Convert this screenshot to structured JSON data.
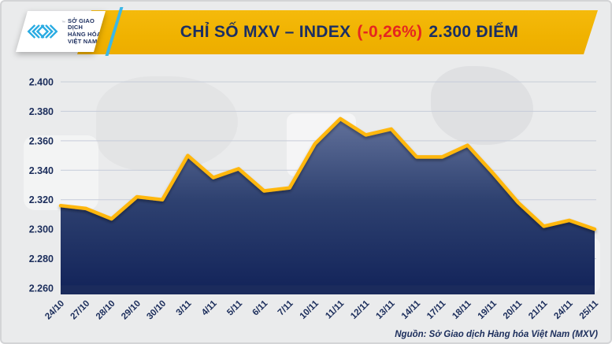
{
  "header": {
    "logo": {
      "line1": "SỞ GIAO DỊCH",
      "line2": "HÀNG HÓA",
      "line3": "VIỆT NAM",
      "trademark": "™"
    },
    "title_main": "CHỈ SỐ MXV – INDEX",
    "title_change": "(-0,26%)",
    "title_value": "2.300 ĐIỂM"
  },
  "footer": {
    "source": "Nguồn: Sở Giao dịch Hàng hóa Việt Nam (MXV)"
  },
  "colors": {
    "banner_yellow": "#F0B200",
    "title_navy": "#1B2F63",
    "title_red": "#E52620",
    "line_yellow": "#FFB70B",
    "axis_navy": "#1B2D5B",
    "gridline": "#C6CCD9",
    "baseline_bar": "#1B2B5C",
    "background": "#EAEBEC",
    "logo_cyan": "#29ABE2"
  },
  "chart_data": {
    "type": "area",
    "title": "CHỈ SỐ MXV – INDEX (-0,26%) 2.300 ĐIỂM",
    "x": [
      "24/10",
      "27/10",
      "28/10",
      "29/10",
      "30/10",
      "3/11",
      "4/11",
      "5/11",
      "6/11",
      "7/11",
      "10/11",
      "11/11",
      "12/11",
      "13/11",
      "14/11",
      "17/11",
      "18/11",
      "19/11",
      "20/11",
      "21/11",
      "24/11",
      "25/11"
    ],
    "values": [
      2.316,
      2.314,
      2.307,
      2.322,
      2.32,
      2.35,
      2.335,
      2.341,
      2.326,
      2.328,
      2.358,
      2.375,
      2.364,
      2.368,
      2.349,
      2.349,
      2.357,
      2.338,
      2.318,
      2.302,
      2.306,
      2.3
    ],
    "ylim": [
      2.26,
      2.4
    ],
    "yticks": [
      2.4,
      2.38,
      2.36,
      2.34,
      2.32,
      2.3,
      2.28,
      2.26
    ],
    "ytick_labels": [
      "2.400",
      "2.380",
      "2.360",
      "2.340",
      "2.320",
      "2.300",
      "2.280",
      "2.260"
    ],
    "grid": true,
    "legend_position": "none",
    "line_color": "#FFB70B",
    "fill_gradient_top": "#66759E",
    "fill_gradient_mid": "#2E4170",
    "fill_gradient_bottom": "#13245A"
  }
}
